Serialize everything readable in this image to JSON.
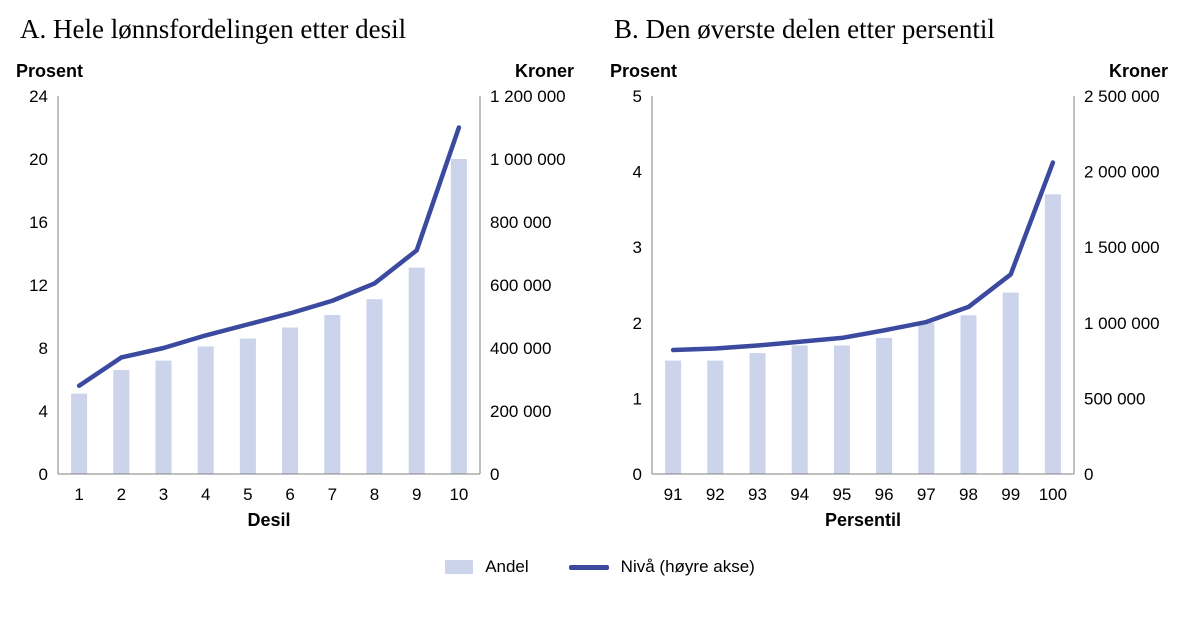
{
  "chart_data": [
    {
      "type": "bar",
      "title": "A. Hele lønnsfordelingen etter desil",
      "left_axis_label": "Prosent",
      "right_axis_label": "Kroner",
      "x_axis_label": "Desil",
      "left_ylim": [
        0,
        24
      ],
      "left_ticks": [
        0,
        4,
        8,
        12,
        16,
        20,
        24
      ],
      "right_ylim": [
        0,
        1200000
      ],
      "right_ticks": [
        0,
        200000,
        400000,
        600000,
        800000,
        1000000,
        1200000
      ],
      "categories": [
        "1",
        "2",
        "3",
        "4",
        "5",
        "6",
        "7",
        "8",
        "9",
        "10"
      ],
      "grid": false,
      "legend_position": "bottom",
      "series": [
        {
          "name": "Andel",
          "type": "bar",
          "axis": "left",
          "values": [
            5.1,
            6.6,
            7.2,
            8.1,
            8.6,
            9.3,
            10.1,
            11.1,
            13.1,
            20.0
          ]
        },
        {
          "name": "Nivå (høyre akse)",
          "type": "line",
          "axis": "right",
          "values": [
            280000,
            370000,
            400000,
            440000,
            475000,
            510000,
            550000,
            605000,
            710000,
            1100000
          ]
        }
      ]
    },
    {
      "type": "bar",
      "title": "B. Den øverste delen etter persentil",
      "left_axis_label": "Prosent",
      "right_axis_label": "Kroner",
      "x_axis_label": "Persentil",
      "left_ylim": [
        0,
        5
      ],
      "left_ticks": [
        0,
        1,
        2,
        3,
        4,
        5
      ],
      "right_ylim": [
        0,
        2500000
      ],
      "right_ticks": [
        0,
        500000,
        1000000,
        1500000,
        2000000,
        2500000
      ],
      "categories": [
        "91",
        "92",
        "93",
        "94",
        "95",
        "96",
        "97",
        "98",
        "99",
        "100"
      ],
      "grid": false,
      "legend_position": "bottom",
      "series": [
        {
          "name": "Andel",
          "type": "bar",
          "axis": "left",
          "values": [
            1.5,
            1.5,
            1.6,
            1.7,
            1.7,
            1.8,
            2.0,
            2.1,
            2.4,
            3.7
          ]
        },
        {
          "name": "Nivå (høyre akse)",
          "type": "line",
          "axis": "right",
          "values": [
            820000,
            830000,
            850000,
            875000,
            900000,
            950000,
            1005000,
            1105000,
            1320000,
            2060000
          ]
        }
      ]
    }
  ],
  "legend": {
    "bar_label": "Andel",
    "line_label": "Nivå (høyre akse)"
  },
  "colors": {
    "bar": "#ccd4ec",
    "line": "#3b4a9e",
    "axis": "#808080",
    "text": "#000000"
  }
}
